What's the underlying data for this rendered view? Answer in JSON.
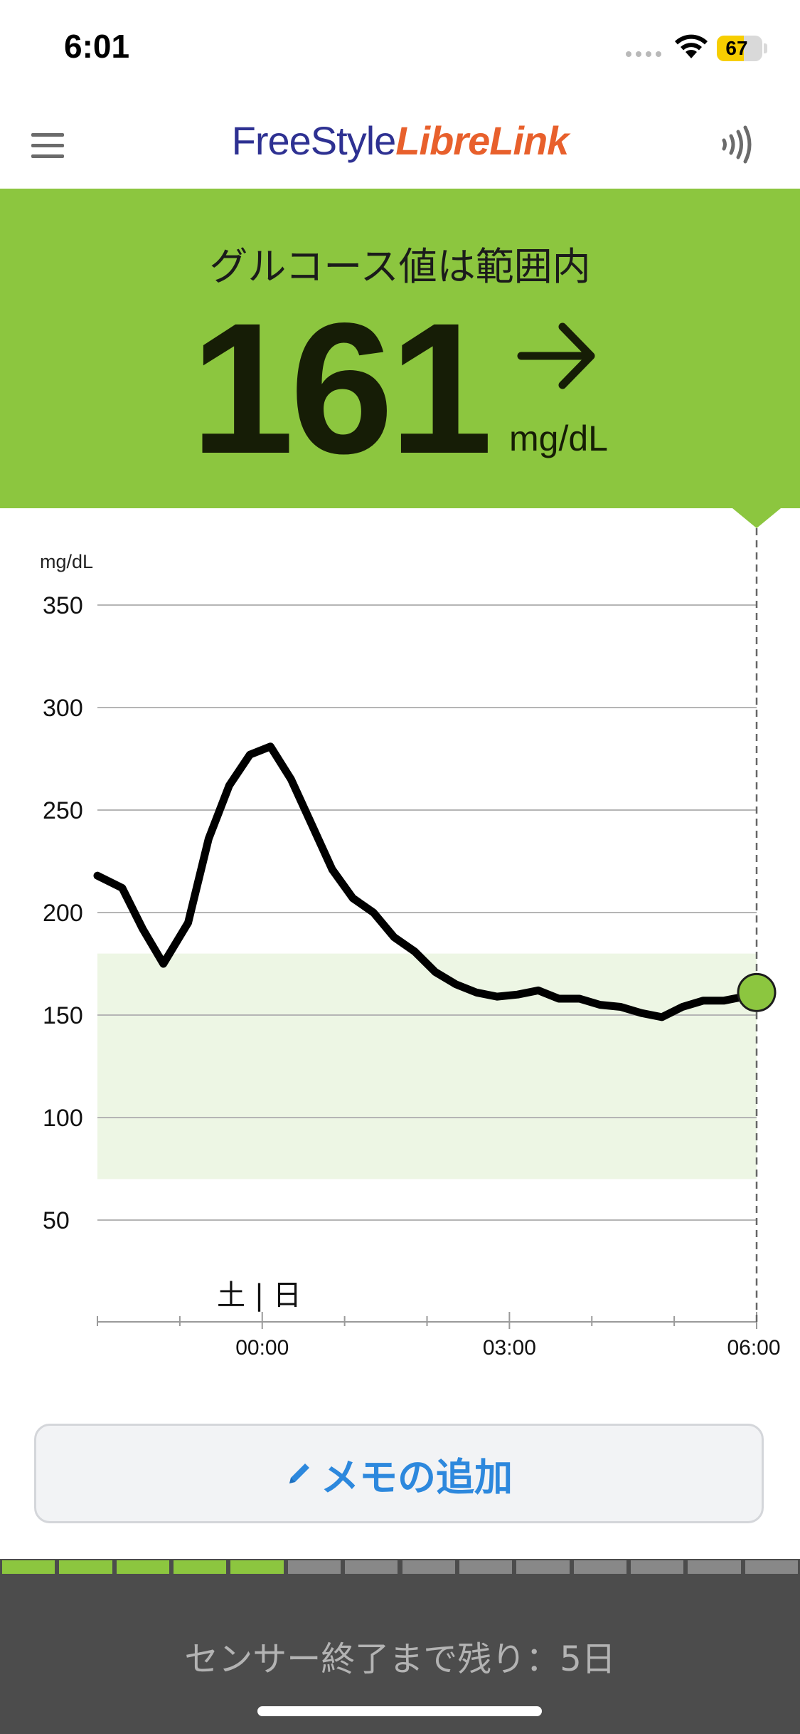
{
  "status_bar": {
    "time": "6:01",
    "battery_percent": "67",
    "battery_level": 0.67,
    "icons": [
      "signal-dots-icon",
      "wifi-icon",
      "battery-icon"
    ]
  },
  "header": {
    "logo_part1": "FreeStyle",
    "logo_part2": "LibreLink",
    "left_icon": "menu-icon",
    "right_icon": "nfc-scan-icon"
  },
  "banner": {
    "status_text": "グルコース値は範囲内",
    "value": "161",
    "unit": "mg/dL",
    "trend_icon": "arrow-right-icon",
    "color": "#8cc63f"
  },
  "chart_data": {
    "type": "line",
    "ylabel": "mg/dL",
    "y_ticks": [
      "350",
      "300",
      "250",
      "200",
      "150",
      "100",
      "50"
    ],
    "y_tick_values": [
      350,
      300,
      250,
      200,
      150,
      100,
      50
    ],
    "ylim": [
      0,
      350
    ],
    "x_tick_labels": [
      "00:00",
      "03:00",
      "06:00"
    ],
    "day_label": "土 | 日",
    "target_range": [
      70,
      180
    ],
    "target_range_color": "#edf6e4",
    "line_color": "#000000",
    "current_marker_color": "#8cc63f",
    "x_hours": [
      -2.0,
      -1.7,
      -1.45,
      -1.2,
      -0.9,
      -0.65,
      -0.4,
      -0.15,
      0.1,
      0.35,
      0.6,
      0.85,
      1.1,
      1.35,
      1.6,
      1.85,
      2.1,
      2.35,
      2.6,
      2.85,
      3.1,
      3.35,
      3.6,
      3.85,
      4.1,
      4.35,
      4.6,
      4.85,
      5.1,
      5.35,
      5.6,
      5.85,
      6.0
    ],
    "values": [
      218,
      212,
      192,
      175,
      195,
      236,
      262,
      277,
      281,
      265,
      243,
      221,
      207,
      200,
      188,
      181,
      171,
      165,
      161,
      159,
      160,
      162,
      158,
      158,
      155,
      154,
      151,
      149,
      154,
      157,
      157,
      159,
      161
    ]
  },
  "memo": {
    "label": "メモの追加",
    "icon": "pencil-icon"
  },
  "sensor": {
    "remaining_text": "センサー終了まで残り：5日",
    "segments_total": 14,
    "segments_elapsed": 5,
    "elapsed_color": "#8cc63f",
    "remaining_color": "#888888"
  }
}
